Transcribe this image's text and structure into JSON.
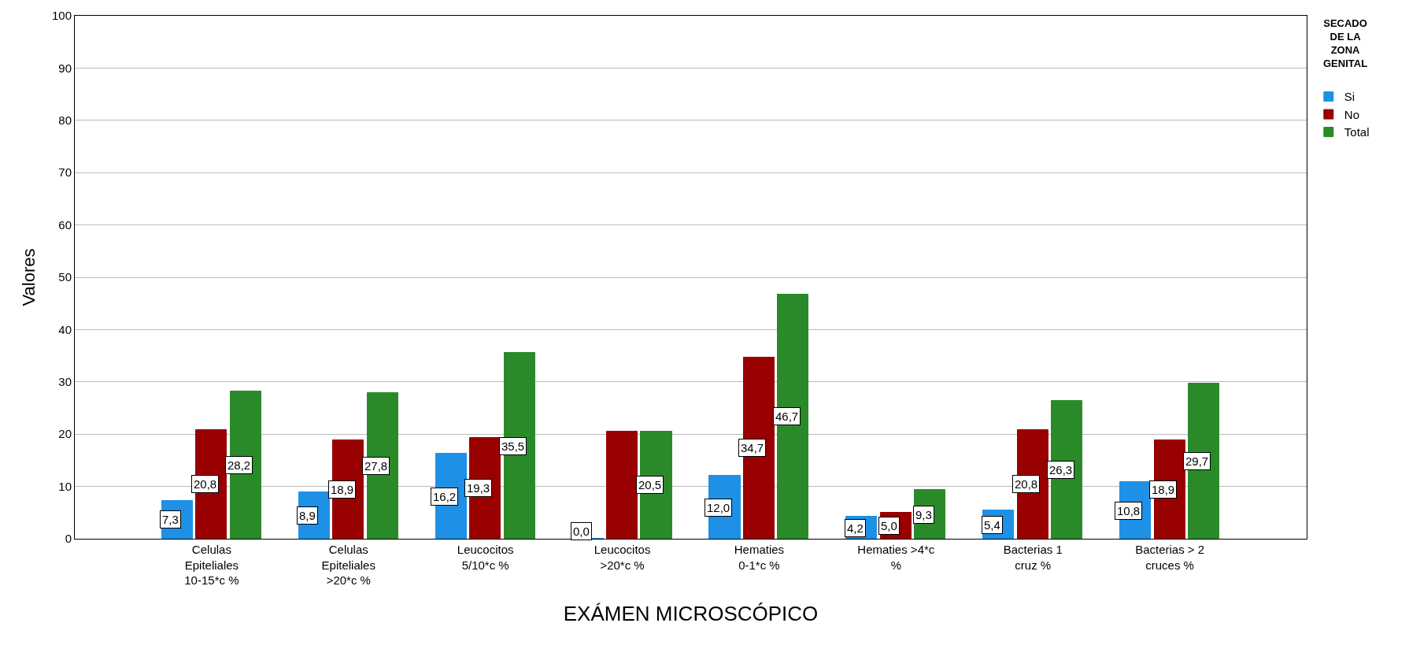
{
  "chart_data": {
    "type": "bar",
    "xlabel": "EXÁMEN MICROSCÓPICO",
    "ylabel": "Valores",
    "legend_title": "SECADO DE LA ZONA GENITAL",
    "categories": [
      "Celulas Epiteliales 10-15*c %",
      "Celulas Epiteliales >20*c %",
      "Leucocitos 5/10*c %",
      "Leucocitos >20*c %",
      "Hematies 0-1*c %",
      "Hematies >4*c %",
      "Bacterias 1 cruz %",
      "Bacterias > 2 cruces %"
    ],
    "series": [
      {
        "name": "Si",
        "color": "#1e90e6",
        "values": [
          7.3,
          8.9,
          16.2,
          0.0,
          12.0,
          4.2,
          5.4,
          10.8
        ],
        "value_labels": [
          "7,3",
          "8,9",
          "16,2",
          "0,0",
          "12,0",
          "4,2",
          "5,4",
          "10,8"
        ]
      },
      {
        "name": "No",
        "color": "#990000",
        "values": [
          20.8,
          18.9,
          19.3,
          20.5,
          34.7,
          5.0,
          20.8,
          18.9
        ],
        "value_labels": [
          "20,8",
          "18,9",
          "19,3",
          null,
          "34,7",
          "5,0",
          "20,8",
          "18,9"
        ]
      },
      {
        "name": "Total",
        "color": "#2a8a2a",
        "values": [
          28.2,
          27.8,
          35.5,
          20.5,
          46.7,
          9.3,
          26.3,
          29.7
        ],
        "value_labels": [
          "28,2",
          "27,8",
          "35,5",
          "20,5",
          "46,7",
          "9,3",
          "26,3",
          "29,7"
        ]
      }
    ],
    "ylim": [
      0,
      100
    ],
    "yticks": [
      0,
      10,
      20,
      30,
      40,
      50,
      60,
      70,
      80,
      90,
      100
    ],
    "grid": "y",
    "legend": "top right"
  }
}
